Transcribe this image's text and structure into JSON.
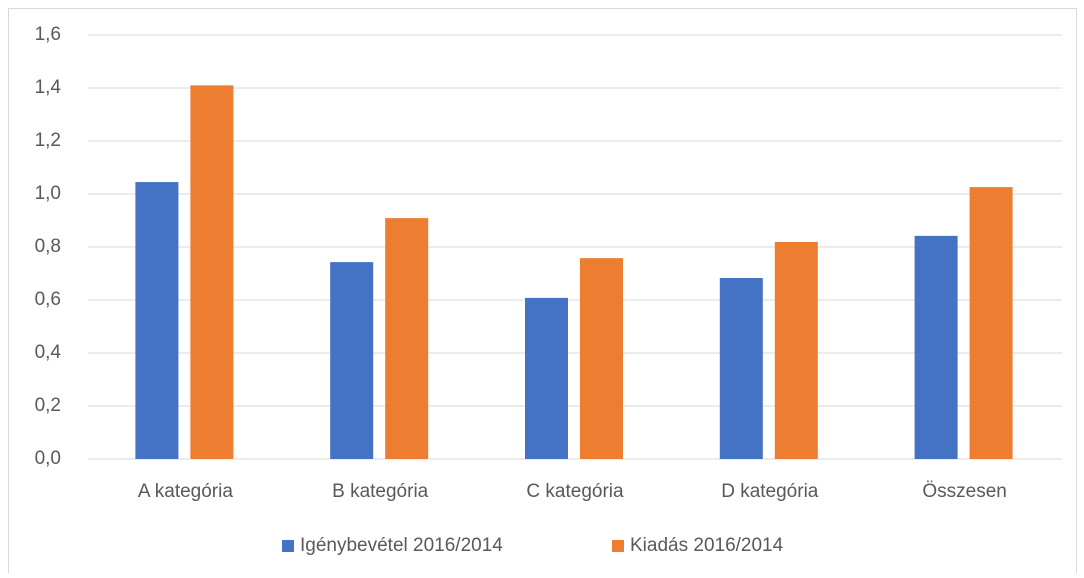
{
  "chart_data": {
    "type": "bar",
    "categories": [
      "A kategória",
      "B kategória",
      "C kategória",
      "D kategória",
      "Összesen"
    ],
    "series": [
      {
        "name": "Igénybevétel 2016/2014",
        "color": "#4472c4",
        "values": [
          1.045,
          0.743,
          0.608,
          0.683,
          0.842
        ]
      },
      {
        "name": "Kiadás 2016/2014",
        "color": "#ed7d31",
        "values": [
          1.41,
          0.909,
          0.758,
          0.819,
          1.026
        ]
      }
    ],
    "ylim": [
      0,
      1.6
    ],
    "yticks": [
      {
        "value": 0,
        "label": "0,0"
      },
      {
        "value": 0.2,
        "label": "0,2"
      },
      {
        "value": 0.4,
        "label": "0,4"
      },
      {
        "value": 0.6,
        "label": "0,6"
      },
      {
        "value": 0.8,
        "label": "0,8"
      },
      {
        "value": 1.0,
        "label": "1,0"
      },
      {
        "value": 1.2,
        "label": "1,2"
      },
      {
        "value": 1.4,
        "label": "1,4"
      },
      {
        "value": 1.6,
        "label": "1,6"
      }
    ],
    "grid": true,
    "legend": "bottom"
  }
}
